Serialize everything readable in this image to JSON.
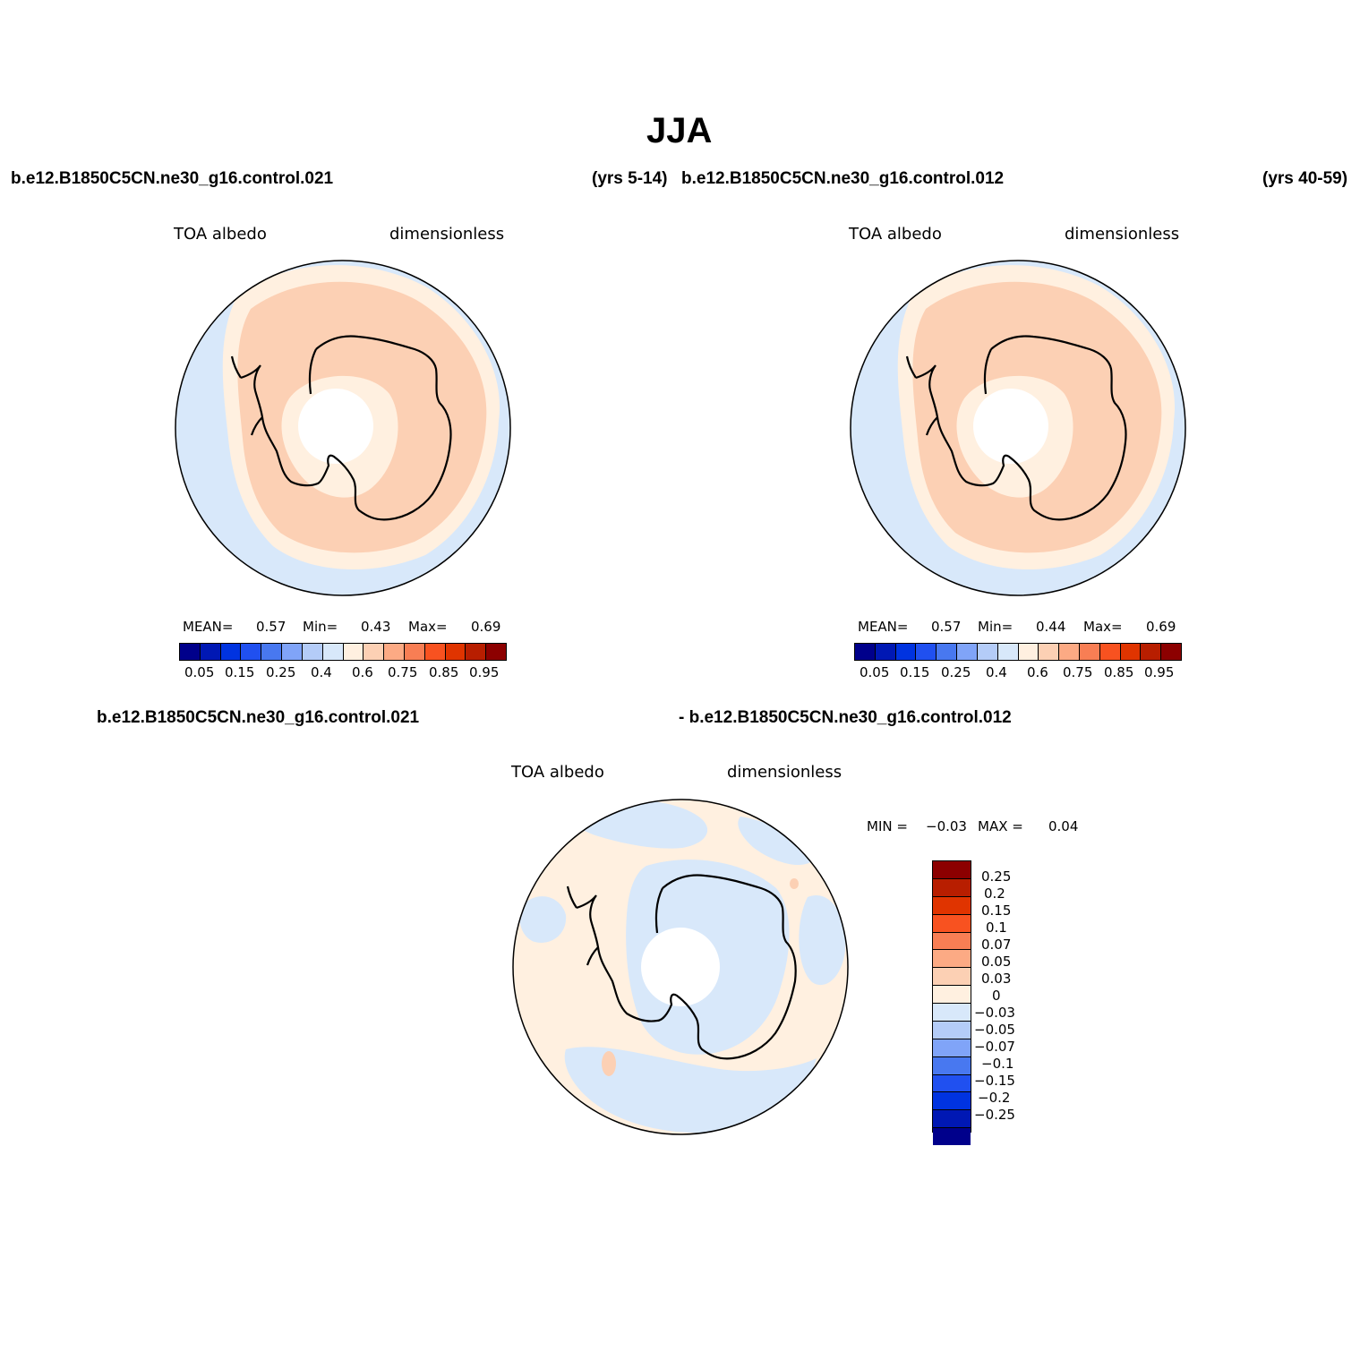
{
  "title": "JJA",
  "top_left_case": "b.e12.B1850C5CN.ne30_g16.control.021",
  "top_left_years": "(yrs 5-14)",
  "top_right_case": "b.e12.B1850C5CN.ne30_g16.control.012",
  "top_right_years": "(yrs 40-59)",
  "panel1": {
    "variable": "TOA albedo",
    "units": "dimensionless",
    "mean_label": "MEAN=",
    "mean_value": "0.57",
    "min_label": "Min=",
    "min_value": "0.43",
    "max_label": "Max=",
    "max_value": "0.69"
  },
  "panel2": {
    "variable": "TOA albedo",
    "units": "dimensionless",
    "mean_label": "MEAN=",
    "mean_value": "0.57",
    "min_label": "Min=",
    "min_value": "0.44",
    "max_label": "Max=",
    "max_value": "0.69"
  },
  "abs_colorbar": {
    "colors": [
      "#00008b",
      "#0018b4",
      "#0033e0",
      "#2050f0",
      "#4878f0",
      "#80a4f8",
      "#b4ccf8",
      "#d8e8fa",
      "#fff0e0",
      "#fcd0b4",
      "#fcaa84",
      "#f87e54",
      "#f85220",
      "#e03400",
      "#b81e00",
      "#8c0000"
    ],
    "labels": [
      "0.05",
      "0.15",
      "0.25",
      "0.4",
      "0.6",
      "0.75",
      "0.85",
      "0.95"
    ]
  },
  "bottom_case_left": "b.e12.B1850C5CN.ne30_g16.control.021",
  "bottom_case_right": "- b.e12.B1850C5CN.ne30_g16.control.012",
  "panel3": {
    "variable": "TOA albedo",
    "units": "dimensionless",
    "min_label": "MIN =",
    "min_value": "−0.03",
    "max_label": "MAX =",
    "max_value": "0.04"
  },
  "diff_colorbar": {
    "colors": [
      "#8c0000",
      "#b81e00",
      "#e03400",
      "#f85220",
      "#f87e54",
      "#fcaa84",
      "#fcd0b4",
      "#fff0e0",
      "#d8e8fa",
      "#b4ccf8",
      "#80a4f8",
      "#4878f0",
      "#2050f0",
      "#0033e0",
      "#0018b4",
      "#00008b"
    ],
    "labels": [
      "0.25",
      "0.2",
      "0.15",
      "0.1",
      "0.07",
      "0.05",
      "0.03",
      "0",
      "−0.03",
      "−0.05",
      "−0.07",
      "−0.1",
      "−0.15",
      "−0.2",
      "−0.25"
    ]
  },
  "fills": {
    "ocean_low": "#d8e8fa",
    "band_mid": "#fff0e0",
    "band_high": "#fcd0b4",
    "pole_missing": "#ffffff",
    "diff_pos": "#fff0e0",
    "diff_neg": "#d8e8fa",
    "diff_spot": "#fcd0b4"
  }
}
